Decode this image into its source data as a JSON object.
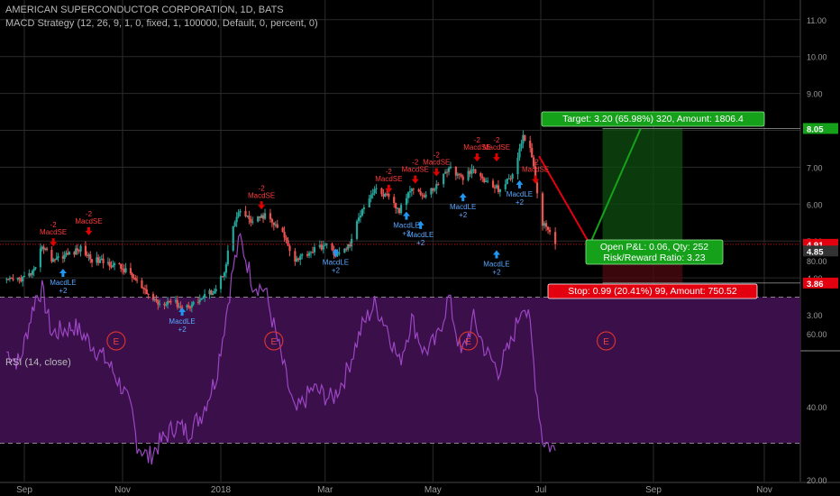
{
  "header": {
    "title": "AMERICAN SUPERCONDUCTOR CORPORATION, 1D, BATS",
    "strategy": "MACD Strategy (12, 26, 9, 1, 0, fixed, 1, 100000, Default, 0, percent, 0)"
  },
  "rsi_pane": {
    "title": "RSI (14, close)"
  },
  "colors": {
    "background": "#000000",
    "up": "#26a69a",
    "down": "#ef5350",
    "rsi_line": "#9b46c3",
    "rsi_band": "#3a0f4a",
    "target_green": "#15a11a",
    "stop_red": "#e3000f",
    "long_entry": "#2196f3",
    "short_entry": "#e00000"
  },
  "chart_data": [
    {
      "type": "candlestick",
      "title": "AMERICAN SUPERCONDUCTOR CORPORATION, 1D, BATS",
      "x_ticks": [
        "Sep",
        "Nov",
        "2018",
        "Mar",
        "May",
        "Jul",
        "Sep",
        "Nov"
      ],
      "y_ticks": [
        "3.00",
        "4.00",
        "5.00",
        "6.00",
        "7.00",
        "8.00",
        "9.00",
        "10.00",
        "11.00"
      ],
      "ylim": [
        2.35,
        11.4
      ],
      "price_markers": [
        {
          "label": "8.05",
          "value": 8.05,
          "color": "#15a11a"
        },
        {
          "label": "4.91",
          "value": 4.91,
          "color": "#e3000f"
        },
        {
          "label": "4.85",
          "value": 4.85,
          "color": "#333333"
        },
        {
          "label": "3.86",
          "value": 3.86,
          "color": "#e3000f"
        }
      ],
      "close_path": [
        [
          "2017-08-21",
          3.9
        ],
        [
          "2017-09-01",
          4.0
        ],
        [
          "2017-09-08",
          4.2
        ],
        [
          "2017-09-12",
          4.9
        ],
        [
          "2017-09-18",
          4.5
        ],
        [
          "2017-09-25",
          4.6
        ],
        [
          "2017-10-02",
          4.7
        ],
        [
          "2017-10-06",
          4.8
        ],
        [
          "2017-10-13",
          4.5
        ],
        [
          "2017-10-23",
          4.4
        ],
        [
          "2017-10-30",
          4.3
        ],
        [
          "2017-11-06",
          4.1
        ],
        [
          "2017-11-15",
          3.6
        ],
        [
          "2017-11-24",
          3.3
        ],
        [
          "2017-12-01",
          3.4
        ],
        [
          "2017-12-08",
          3.2
        ],
        [
          "2017-12-15",
          3.3
        ],
        [
          "2017-12-22",
          3.5
        ],
        [
          "2017-12-29",
          3.7
        ],
        [
          "2018-01-03",
          4.2
        ],
        [
          "2018-01-08",
          5.4
        ],
        [
          "2018-01-12",
          5.8
        ],
        [
          "2018-01-19",
          5.5
        ],
        [
          "2018-01-26",
          5.7
        ],
        [
          "2018-02-05",
          5.2
        ],
        [
          "2018-02-12",
          4.5
        ],
        [
          "2018-02-20",
          4.7
        ],
        [
          "2018-03-01",
          4.9
        ],
        [
          "2018-03-08",
          4.6
        ],
        [
          "2018-03-15",
          4.9
        ],
        [
          "2018-03-22",
          5.9
        ],
        [
          "2018-03-29",
          6.4
        ],
        [
          "2018-04-05",
          6.2
        ],
        [
          "2018-04-12",
          5.8
        ],
        [
          "2018-04-19",
          6.5
        ],
        [
          "2018-04-26",
          6.2
        ],
        [
          "2018-05-03",
          6.5
        ],
        [
          "2018-05-10",
          7.0
        ],
        [
          "2018-05-17",
          6.7
        ],
        [
          "2018-05-24",
          6.9
        ],
        [
          "2018-05-31",
          6.6
        ],
        [
          "2018-06-07",
          6.4
        ],
        [
          "2018-06-14",
          6.7
        ],
        [
          "2018-06-21",
          7.8
        ],
        [
          "2018-06-25",
          7.6
        ],
        [
          "2018-06-28",
          6.6
        ],
        [
          "2018-07-02",
          5.5
        ],
        [
          "2018-07-09",
          4.91
        ]
      ],
      "signals": [
        {
          "label": "MacdLE",
          "qty": "+2",
          "side": "long",
          "date": "2017-09-25",
          "price": 4.1
        },
        {
          "label": "MacdSE",
          "qty": "-2",
          "side": "short",
          "date": "2017-09-19",
          "price": 5.0
        },
        {
          "label": "MacdSE",
          "qty": "-2",
          "side": "short",
          "date": "2017-10-11",
          "price": 5.3
        },
        {
          "label": "MacdLE",
          "qty": "+2",
          "side": "long",
          "date": "2017-12-08",
          "price": 3.05
        },
        {
          "label": "MacdSE",
          "qty": "-2",
          "side": "short",
          "date": "2018-01-24",
          "price": 6.0
        },
        {
          "label": "MacdLE",
          "qty": "+2",
          "side": "long",
          "date": "2018-03-07",
          "price": 4.65
        },
        {
          "label": "MacdSE",
          "qty": "-2",
          "side": "short",
          "date": "2018-04-06",
          "price": 6.45
        },
        {
          "label": "MacdLE",
          "qty": "+2",
          "side": "long",
          "date": "2018-04-16",
          "price": 5.65
        },
        {
          "label": "MacdLE",
          "qty": "+2",
          "side": "long",
          "date": "2018-04-24",
          "price": 5.4
        },
        {
          "label": "MacdSE",
          "qty": "-2",
          "side": "short",
          "date": "2018-04-21",
          "price": 6.7
        },
        {
          "label": "MacdSE",
          "qty": "-2",
          "side": "short",
          "date": "2018-05-03",
          "price": 6.9
        },
        {
          "label": "MacdLE",
          "qty": "+2",
          "side": "long",
          "date": "2018-05-18",
          "price": 6.15
        },
        {
          "label": "MacdSE",
          "qty": "-2",
          "side": "short",
          "date": "2018-05-26",
          "price": 7.3
        },
        {
          "label": "MacdSE",
          "qty": "-2",
          "side": "short",
          "date": "2018-06-06",
          "price": 7.3
        },
        {
          "label": "MacdLE",
          "qty": "+2",
          "side": "long",
          "date": "2018-06-06",
          "price": 4.6
        },
        {
          "label": "MacdLE",
          "qty": "+2",
          "side": "long",
          "date": "2018-06-19",
          "price": 6.5
        },
        {
          "label": "MacdSE",
          "qty": "-2",
          "side": "short",
          "date": "2018-06-28",
          "price": 6.7
        }
      ],
      "earnings_dates": [
        "2017-10-28",
        "2018-01-31",
        "2018-05-21",
        "2018-08-06"
      ],
      "earnings_label": "E",
      "position": {
        "entry_date": "2018-07-07",
        "entry": 4.85,
        "target": 8.05,
        "stop": 3.86,
        "current": 4.91,
        "box_start": "2018-08-04",
        "box_end": "2018-09-17",
        "line_points": [
          [
            "2018-06-30",
            7.3
          ],
          [
            "2018-07-28",
            4.91
          ],
          [
            "2018-08-25",
            8.05
          ]
        ],
        "target_label": "Target: 3.20 (65.98%) 320, Amount: 1806.4",
        "stop_label": "Stop: 0.99 (20.41%) 99, Amount: 750.52",
        "pnl_label": "Open P&L: 0.06, Qty: 252",
        "rr_label": "Risk/Reward Ratio: 3.23"
      }
    },
    {
      "type": "line",
      "title": "RSI (14, close)",
      "y_ticks": [
        "20.00",
        "40.00",
        "60.00",
        "80.00"
      ],
      "ylim": [
        19,
        87
      ],
      "bands": [
        30,
        70
      ],
      "values": [
        [
          "2017-08-21",
          55
        ],
        [
          "2017-08-29",
          52
        ],
        [
          "2017-09-08",
          70
        ],
        [
          "2017-09-12",
          72
        ],
        [
          "2017-09-18",
          60
        ],
        [
          "2017-10-02",
          62
        ],
        [
          "2017-10-11",
          58
        ],
        [
          "2017-10-23",
          52
        ],
        [
          "2017-11-01",
          45
        ],
        [
          "2017-11-07",
          38
        ],
        [
          "2017-11-10",
          30
        ],
        [
          "2017-11-17",
          26
        ],
        [
          "2017-11-24",
          30
        ],
        [
          "2017-12-04",
          35
        ],
        [
          "2017-12-12",
          33
        ],
        [
          "2017-12-20",
          38
        ],
        [
          "2017-12-29",
          48
        ],
        [
          "2018-01-03",
          62
        ],
        [
          "2018-01-08",
          78
        ],
        [
          "2018-01-12",
          86
        ],
        [
          "2018-01-19",
          74
        ],
        [
          "2018-01-26",
          72
        ],
        [
          "2018-02-05",
          52
        ],
        [
          "2018-02-12",
          38
        ],
        [
          "2018-02-22",
          45
        ],
        [
          "2018-03-05",
          42
        ],
        [
          "2018-03-12",
          48
        ],
        [
          "2018-03-22",
          62
        ],
        [
          "2018-03-29",
          68
        ],
        [
          "2018-04-05",
          62
        ],
        [
          "2018-04-12",
          52
        ],
        [
          "2018-04-19",
          64
        ],
        [
          "2018-04-26",
          55
        ],
        [
          "2018-05-03",
          58
        ],
        [
          "2018-05-10",
          70
        ],
        [
          "2018-05-17",
          54
        ],
        [
          "2018-05-24",
          64
        ],
        [
          "2018-05-31",
          55
        ],
        [
          "2018-06-07",
          50
        ],
        [
          "2018-06-14",
          57
        ],
        [
          "2018-06-21",
          69
        ],
        [
          "2018-06-25",
          62
        ],
        [
          "2018-06-28",
          47
        ],
        [
          "2018-07-02",
          31
        ],
        [
          "2018-07-09",
          28
        ]
      ]
    }
  ]
}
